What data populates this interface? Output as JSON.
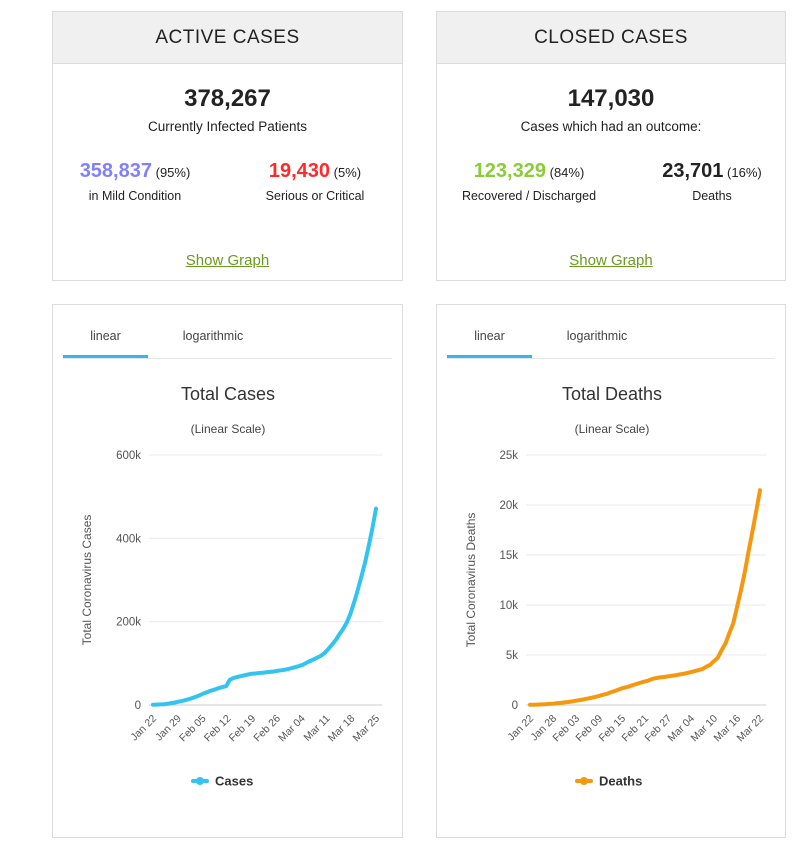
{
  "active": {
    "title": "ACTIVE CASES",
    "total": "378,267",
    "total_label": "Currently Infected Patients",
    "mild": {
      "value": "358,837",
      "pct": "(95%)",
      "label": "in Mild Condition",
      "color": "#8080ff"
    },
    "serious": {
      "value": "19,430",
      "pct": "(5%)",
      "label": "Serious or Critical",
      "color": "#ff2a2a"
    },
    "show_graph": "Show Graph"
  },
  "closed": {
    "title": "CLOSED CASES",
    "total": "147,030",
    "total_label": "Cases which had an outcome:",
    "recovered": {
      "value": "123,329",
      "pct": "(84%)",
      "label": "Recovered / Discharged",
      "color": "#8acc38"
    },
    "deaths": {
      "value": "23,701",
      "pct": "(16%)",
      "label": "Deaths",
      "color": "#222222"
    },
    "show_graph": "Show Graph"
  },
  "chart_cases": {
    "tabs": [
      "linear",
      "logarithmic"
    ],
    "active_tab": "linear"
  },
  "chart_deaths": {
    "tabs": [
      "linear",
      "logarithmic"
    ],
    "active_tab": "linear"
  },
  "chart_data": [
    {
      "type": "line",
      "title": "Total Cases",
      "subtitle": "(Linear Scale)",
      "ylabel": "Total Coronavirus Cases",
      "xlabel": "",
      "ylim": [
        0,
        600000
      ],
      "yticks": [
        0,
        200000,
        400000,
        600000
      ],
      "ytick_labels": [
        "0",
        "200k",
        "400k",
        "600k"
      ],
      "xtick_labels": [
        "Jan 22",
        "Jan 29",
        "Feb 05",
        "Feb 12",
        "Feb 19",
        "Feb 26",
        "Mar 04",
        "Mar 11",
        "Mar 18",
        "Mar 25"
      ],
      "grid": true,
      "legend_position": "bottom",
      "series": [
        {
          "name": "Cases",
          "color": "#33c3f0",
          "values": [
            580,
            845,
            1320,
            2010,
            2800,
            4580,
            6070,
            7820,
            9820,
            11950,
            14550,
            17390,
            20630,
            24550,
            28280,
            31440,
            34880,
            37560,
            40550,
            43100,
            45200,
            60370,
            64550,
            67100,
            69200,
            71300,
            73300,
            75200,
            75700,
            76700,
            77600,
            78500,
            79500,
            80500,
            81900,
            83200,
            84500,
            86500,
            88700,
            91000,
            93700,
            96700,
            101600,
            105600,
            109800,
            114000,
            118600,
            125300,
            134700,
            145300,
            156100,
            169600,
            182500,
            198100,
            218800,
            246100,
            275500,
            308400,
            341400,
            381600,
            422800,
            471400
          ]
        }
      ]
    },
    {
      "type": "line",
      "title": "Total Deaths",
      "subtitle": "(Linear Scale)",
      "ylabel": "Total Coronavirus Deaths",
      "xlabel": "",
      "ylim": [
        0,
        25000
      ],
      "yticks": [
        0,
        5000,
        10000,
        15000,
        20000,
        25000
      ],
      "ytick_labels": [
        "0",
        "5k",
        "10k",
        "15k",
        "20k",
        "25k"
      ],
      "xtick_labels": [
        "Jan 22",
        "Jan 28",
        "Feb 03",
        "Feb 09",
        "Feb 15",
        "Feb 21",
        "Feb 27",
        "Mar 04",
        "Mar 10",
        "Mar 16",
        "Mar 22"
      ],
      "grid": true,
      "legend_position": "bottom",
      "series": [
        {
          "name": "Deaths",
          "color": "#f5980f",
          "values": [
            17,
            25,
            41,
            56,
            80,
            106,
            132,
            170,
            213,
            259,
            304,
            362,
            426,
            492,
            565,
            638,
            724,
            813,
            910,
            1018,
            1115,
            1261,
            1383,
            1526,
            1669,
            1775,
            1873,
            2009,
            2126,
            2247,
            2360,
            2460,
            2618,
            2699,
            2763,
            2800,
            2858,
            2923,
            2977,
            3050,
            3117,
            3202,
            3285,
            3387,
            3494,
            3599,
            3827,
            4016,
            4392,
            4726,
            5494,
            6164,
            7181,
            8152,
            9779,
            11398,
            13238,
            15322,
            17289,
            19372,
            21481
          ]
        }
      ]
    }
  ]
}
